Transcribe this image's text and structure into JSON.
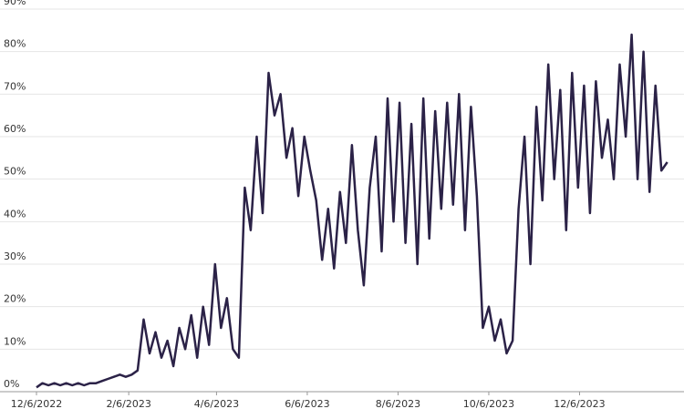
{
  "chart_data": {
    "type": "line",
    "color": "#2b2247",
    "grid": true,
    "x": [
      "2022-12-06",
      "2022-12-10",
      "2022-12-14",
      "2022-12-18",
      "2022-12-22",
      "2022-12-26",
      "2022-12-30",
      "2023-01-03",
      "2023-01-07",
      "2023-01-11",
      "2023-01-15",
      "2023-01-19",
      "2023-01-23",
      "2023-01-27",
      "2023-01-31",
      "2023-02-04",
      "2023-02-08",
      "2023-02-12",
      "2023-02-16",
      "2023-02-20",
      "2023-02-24",
      "2023-02-28",
      "2023-03-04",
      "2023-03-08",
      "2023-03-12",
      "2023-03-16",
      "2023-03-20",
      "2023-03-24",
      "2023-03-28",
      "2023-04-01",
      "2023-04-05",
      "2023-04-09",
      "2023-04-13",
      "2023-04-17",
      "2023-04-21",
      "2023-04-25",
      "2023-04-29",
      "2023-05-03",
      "2023-05-07",
      "2023-05-11",
      "2023-05-15",
      "2023-05-19",
      "2023-05-23",
      "2023-05-27",
      "2023-05-31",
      "2023-06-04",
      "2023-06-08",
      "2023-06-12",
      "2023-06-16",
      "2023-06-20",
      "2023-06-24",
      "2023-06-28",
      "2023-07-02",
      "2023-07-06",
      "2023-07-10",
      "2023-07-14",
      "2023-07-18",
      "2023-07-22",
      "2023-07-26",
      "2023-07-30",
      "2023-08-03",
      "2023-08-07",
      "2023-08-11",
      "2023-08-15",
      "2023-08-19",
      "2023-08-23",
      "2023-08-27",
      "2023-08-31",
      "2023-09-04",
      "2023-09-08",
      "2023-09-12",
      "2023-09-16",
      "2023-09-20",
      "2023-09-24",
      "2023-09-28",
      "2023-10-02",
      "2023-10-06",
      "2023-10-10",
      "2023-10-14",
      "2023-10-18",
      "2023-10-22",
      "2023-10-26",
      "2023-10-30",
      "2023-11-03",
      "2023-11-07",
      "2023-11-11",
      "2023-11-15",
      "2023-11-19",
      "2023-11-23",
      "2023-11-27",
      "2023-12-01",
      "2023-12-05",
      "2023-12-09",
      "2023-12-13",
      "2023-12-17",
      "2023-12-21",
      "2023-12-25",
      "2023-12-29",
      "2024-01-02",
      "2024-01-06",
      "2024-01-10",
      "2024-01-14",
      "2024-01-18",
      "2024-01-22",
      "2024-01-26",
      "2024-01-30",
      "2024-02-03"
    ],
    "values": [
      1,
      2,
      1.5,
      2,
      1.5,
      2,
      1.5,
      2,
      1.5,
      2,
      2,
      2.5,
      3,
      3.5,
      4,
      3.5,
      4,
      5,
      17,
      9,
      14,
      8,
      12,
      6,
      15,
      10,
      18,
      8,
      20,
      11,
      30,
      15,
      22,
      10,
      8,
      48,
      38,
      60,
      42,
      75,
      65,
      70,
      55,
      62,
      46,
      60,
      52,
      45,
      31,
      43,
      29,
      47,
      35,
      58,
      38,
      25,
      48,
      60,
      33,
      69,
      40,
      68,
      35,
      63,
      30,
      69,
      36,
      66,
      43,
      68,
      44,
      70,
      38,
      67,
      46,
      15,
      20,
      12,
      17,
      9,
      12,
      43,
      60,
      30,
      67,
      45,
      77,
      50,
      71,
      38,
      75,
      48,
      72,
      42,
      73,
      55,
      64,
      50,
      77,
      60,
      84,
      50,
      80,
      47,
      72,
      52,
      54
    ],
    "xlim": [
      "2022-12-06",
      "2024-02-05"
    ],
    "xticks": [
      {
        "value": "2022-12-06",
        "label": "12/6/2022"
      },
      {
        "value": "2023-02-06",
        "label": "2/6/2023"
      },
      {
        "value": "2023-04-06",
        "label": "4/6/2023"
      },
      {
        "value": "2023-06-06",
        "label": "6/6/2023"
      },
      {
        "value": "2023-08-06",
        "label": "8/6/2023"
      },
      {
        "value": "2023-10-06",
        "label": "10/6/2023"
      },
      {
        "value": "2023-12-06",
        "label": "12/6/2023"
      }
    ],
    "ylim": [
      0,
      90
    ],
    "yticks": [
      {
        "value": 0,
        "label": "0%"
      },
      {
        "value": 10,
        "label": "10%"
      },
      {
        "value": 20,
        "label": "20%"
      },
      {
        "value": 30,
        "label": "30%"
      },
      {
        "value": 40,
        "label": "40%"
      },
      {
        "value": 50,
        "label": "50%"
      },
      {
        "value": 60,
        "label": "60%"
      },
      {
        "value": 70,
        "label": "70%"
      },
      {
        "value": 80,
        "label": "80%"
      },
      {
        "value": 90,
        "label": "90%"
      }
    ]
  }
}
